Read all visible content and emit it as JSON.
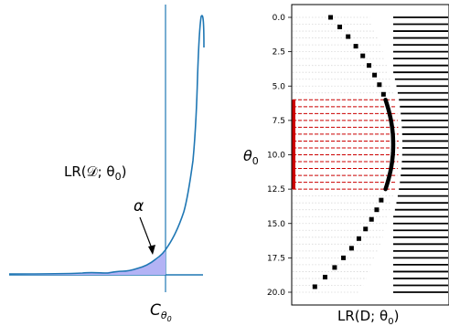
{
  "left_panel": {
    "curve_label": "LR(𝒟; θ",
    "curve_label_sub": "0",
    "curve_label_close": ")",
    "alpha_label": "α",
    "threshold_label": "C",
    "threshold_label_sub": "θ",
    "threshold_label_subsub": "0",
    "curve_color": "#1f77b4",
    "fill_color": "#b3b3f5"
  },
  "right_panel": {
    "ylabel": "θ",
    "ylabel_sub": "0",
    "xlabel": "LR(D; θ",
    "xlabel_sub": "0",
    "xlabel_close": ")",
    "highlight_color": "#cc0000"
  },
  "chart_data": [
    {
      "type": "line",
      "panel": "left",
      "title": "",
      "xlabel": "",
      "ylabel": "",
      "description_series": [
        {
          "name": "",
          "x": [
            0.0,
            0.1,
            0.2,
            0.3,
            0.35,
            0.4,
            0.45,
            0.5,
            0.52,
            0.56,
            0.6,
            0.64,
            0.68,
            0.72,
            0.76,
            0.8,
            0.84,
            0.88,
            0.9,
            0.92,
            0.94,
            0.96,
            0.98,
            1.0
          ],
          "y": [
            0.0,
            0.0,
            0.005,
            0.01,
            0.015,
            0.02,
            0.025,
            0.03,
            0.04,
            0.04,
            0.06,
            0.08,
            0.1,
            0.15,
            0.22,
            0.3,
            0.4,
            0.5,
            0.7,
            0.78,
            0.86,
            0.9,
            1.0,
            0.85
          ]
        }
      ],
      "threshold_x": 0.76
    },
    {
      "type": "scatter",
      "panel": "right",
      "title": "",
      "xlabel": "LR(D; θ0)",
      "ylabel": "θ0",
      "yticks": [
        "0.0",
        "2.5",
        "5.0",
        "7.5",
        "10.0",
        "12.5",
        "15.0",
        "17.5",
        "20.0"
      ],
      "ylim": [
        20.8,
        -1.2
      ],
      "highlight_range": [
        6.0,
        12.5
      ]
    }
  ]
}
